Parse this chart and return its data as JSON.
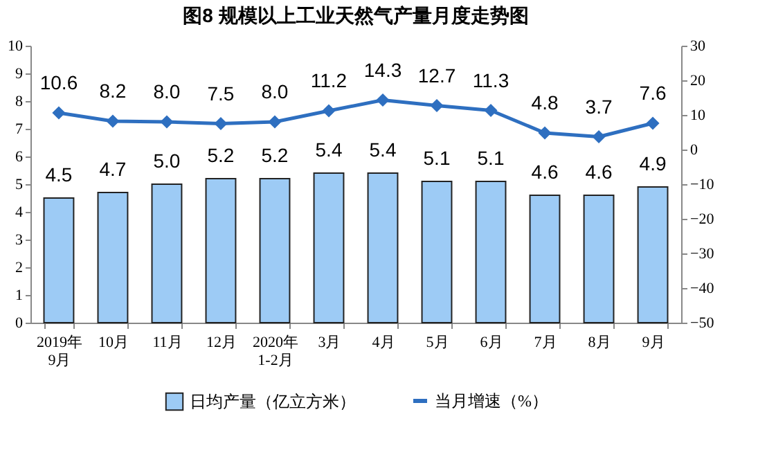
{
  "chart_data": {
    "type": "bar",
    "title": "图8  规模以上工业天然气产量月度走势图",
    "categories": [
      "2019年\n9月",
      "10月",
      "11月",
      "12月",
      "2020年\n1-2月",
      "3月",
      "4月",
      "5月",
      "6月",
      "7月",
      "8月",
      "9月"
    ],
    "series": [
      {
        "name": "日均产量（亿立方米）",
        "color": "#9dcbf5",
        "values": [
          4.5,
          4.7,
          5.0,
          5.2,
          5.2,
          5.4,
          5.4,
          5.1,
          5.1,
          4.6,
          4.6,
          4.9
        ],
        "value_labels": [
          "4.5",
          "4.7",
          "5.0",
          "5.2",
          "5.2",
          "5.4",
          "5.4",
          "5.1",
          "5.1",
          "4.6",
          "4.6",
          "4.9"
        ]
      },
      {
        "name": "当月增速（%）",
        "type": "line",
        "axis": "y2",
        "color": "#2e6fc0",
        "marker": "diamond",
        "values": [
          10.6,
          8.2,
          8.0,
          7.5,
          8.0,
          11.2,
          14.3,
          12.7,
          11.3,
          4.8,
          3.7,
          7.6
        ],
        "value_labels": [
          "10.6",
          "8.2",
          "8.0",
          "7.5",
          "8.0",
          "11.2",
          "14.3",
          "12.7",
          "11.3",
          "4.8",
          "3.7",
          "7.6"
        ]
      }
    ],
    "ylim": [
      0,
      10
    ],
    "yticks": [
      0,
      1,
      2,
      3,
      4,
      5,
      6,
      7,
      8,
      9,
      10
    ],
    "y2lim": [
      -50,
      30
    ],
    "y2ticks": [
      -50,
      -40,
      -30,
      -20,
      -10,
      0,
      10,
      20,
      30
    ],
    "legend": "bottom",
    "grid": false
  }
}
